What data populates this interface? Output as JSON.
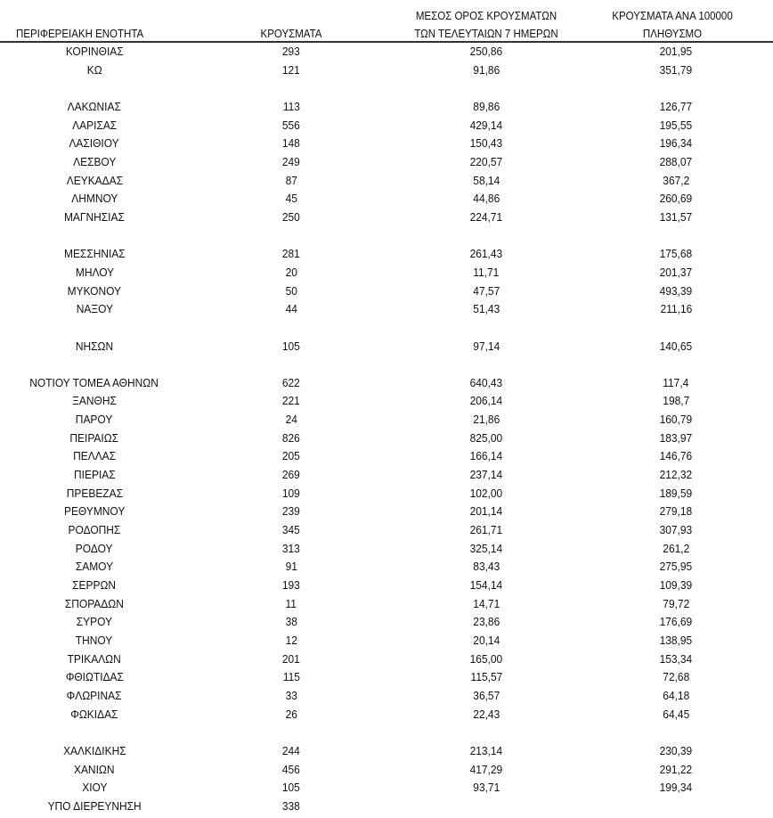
{
  "header": {
    "region": "ΠΕΡΙΦΕΡΕΙΑΚΗ ΕΝΟΤΗΤΑ",
    "cases": "ΚΡΟΥΣΜΑΤΑ",
    "avg_line1": "ΜΕΣΟΣ ΟΡΟΣ ΚΡΟΥΣΜΑΤΩΝ",
    "avg_line2": "ΤΩΝ ΤΕΛΕΥΤΑΙΩΝ 7 ΗΜΕΡΩΝ",
    "per100k_line1": "ΚΡΟΥΣΜΑΤΑ ΑΝΑ 100000",
    "per100k_line2": "ΠΛΗΘΥΣΜΟ"
  },
  "rows": [
    [
      "ΚΟΡΙΝΘΙΑΣ",
      "293",
      "250,86",
      "201,95"
    ],
    [
      "ΚΩ",
      "121",
      "91,86",
      "351,79"
    ],
    null,
    [
      "ΛΑΚΩΝΙΑΣ",
      "113",
      "89,86",
      "126,77"
    ],
    [
      "ΛΑΡΙΣΑΣ",
      "556",
      "429,14",
      "195,55"
    ],
    [
      "ΛΑΣΙΘΙΟΥ",
      "148",
      "150,43",
      "196,34"
    ],
    [
      "ΛΕΣΒΟΥ",
      "249",
      "220,57",
      "288,07"
    ],
    [
      "ΛΕΥΚΑΔΑΣ",
      "87",
      "58,14",
      "367,2"
    ],
    [
      "ΛΗΜΝΟΥ",
      "45",
      "44,86",
      "260,69"
    ],
    [
      "ΜΑΓΝΗΣΙΑΣ",
      "250",
      "224,71",
      "131,57"
    ],
    null,
    [
      "ΜΕΣΣΗΝΙΑΣ",
      "281",
      "261,43",
      "175,68"
    ],
    [
      "ΜΗΛΟΥ",
      "20",
      "11,71",
      "201,37"
    ],
    [
      "ΜΥΚΟΝΟΥ",
      "50",
      "47,57",
      "493,39"
    ],
    [
      "ΝΑΞΟΥ",
      "44",
      "51,43",
      "211,16"
    ],
    null,
    [
      "ΝΗΣΩΝ",
      "105",
      "97,14",
      "140,65"
    ],
    null,
    [
      "ΝΟΤΙΟΥ ΤΟΜΕΑ ΑΘΗΝΩΝ",
      "622",
      "640,43",
      "117,4"
    ],
    [
      "ΞΑΝΘΗΣ",
      "221",
      "206,14",
      "198,7"
    ],
    [
      "ΠΑΡΟΥ",
      "24",
      "21,86",
      "160,79"
    ],
    [
      "ΠΕΙΡΑΙΩΣ",
      "826",
      "825,00",
      "183,97"
    ],
    [
      "ΠΕΛΛΑΣ",
      "205",
      "166,14",
      "146,76"
    ],
    [
      "ΠΙΕΡΙΑΣ",
      "269",
      "237,14",
      "212,32"
    ],
    [
      "ΠΡΕΒΕΖΑΣ",
      "109",
      "102,00",
      "189,59"
    ],
    [
      "ΡΕΘΥΜΝΟΥ",
      "239",
      "201,14",
      "279,18"
    ],
    [
      "ΡΟΔΟΠΗΣ",
      "345",
      "261,71",
      "307,93"
    ],
    [
      "ΡΟΔΟΥ",
      "313",
      "325,14",
      "261,2"
    ],
    [
      "ΣΑΜΟΥ",
      "91",
      "83,43",
      "275,95"
    ],
    [
      "ΣΕΡΡΩΝ",
      "193",
      "154,14",
      "109,39"
    ],
    [
      "ΣΠΟΡΑΔΩΝ",
      "11",
      "14,71",
      "79,72"
    ],
    [
      "ΣΥΡΟΥ",
      "38",
      "23,86",
      "176,69"
    ],
    [
      "ΤΗΝΟΥ",
      "12",
      "20,14",
      "138,95"
    ],
    [
      "ΤΡΙΚΑΛΩΝ",
      "201",
      "165,00",
      "153,34"
    ],
    [
      "ΦΘΙΩΤΙΔΑΣ",
      "115",
      "115,57",
      "72,68"
    ],
    [
      "ΦΛΩΡΙΝΑΣ",
      "33",
      "36,57",
      "64,18"
    ],
    [
      "ΦΩΚΙΔΑΣ",
      "26",
      "22,43",
      "64,45"
    ],
    null,
    [
      "ΧΑΛΚΙΔΙΚΗΣ",
      "244",
      "213,14",
      "230,39"
    ],
    [
      "ΧΑΝΙΩΝ",
      "456",
      "417,29",
      "291,22"
    ],
    [
      "ΧΙΟΥ",
      "105",
      "93,71",
      "199,34"
    ],
    [
      "ΥΠΟ ΔΙΕΡΕΥΝΗΣΗ",
      "338",
      "",
      ""
    ]
  ]
}
